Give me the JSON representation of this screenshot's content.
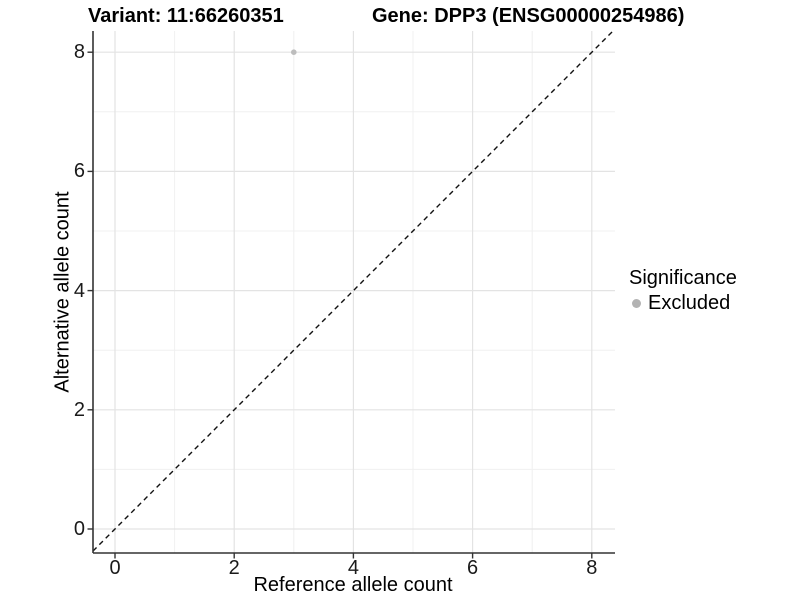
{
  "titles": {
    "variant": "Variant: 11:66260351",
    "gene": "Gene: DPP3 (ENSG00000254986)"
  },
  "axes": {
    "x_label": "Reference allele count",
    "y_label": "Alternative allele count"
  },
  "legend": {
    "title": "Significance",
    "items": [
      {
        "label": "Excluded",
        "color": "#b3b3b3"
      }
    ]
  },
  "colors": {
    "background": "#ffffff",
    "grid_major": "#e3e3e3",
    "grid_minor": "#f0f0f0",
    "axis_line": "#333333",
    "reference_line": "#111111",
    "point": "#bdbdbd",
    "text": "#000000"
  },
  "chart_data": {
    "type": "scatter",
    "title": "Variant: 11:66260351   Gene: DPP3 (ENSG00000254986)",
    "xlabel": "Reference allele count",
    "ylabel": "Alternative allele count",
    "xlim": [
      -0.37,
      8.39
    ],
    "ylim": [
      -0.4,
      8.36
    ],
    "x_ticks": [
      0,
      2,
      4,
      6,
      8
    ],
    "y_ticks": [
      0,
      2,
      4,
      6,
      8
    ],
    "x_minor_ticks": [
      1,
      3,
      5,
      7
    ],
    "y_minor_ticks": [
      1,
      3,
      5,
      7
    ],
    "grid": true,
    "legend_position": "right",
    "series": [
      {
        "name": "Excluded",
        "color": "#bdbdbd",
        "points": [
          {
            "x": 3,
            "y": 8
          }
        ]
      }
    ],
    "reference_line": {
      "kind": "identity",
      "equation": "y = x",
      "style": "dashed",
      "color": "#111111"
    }
  }
}
